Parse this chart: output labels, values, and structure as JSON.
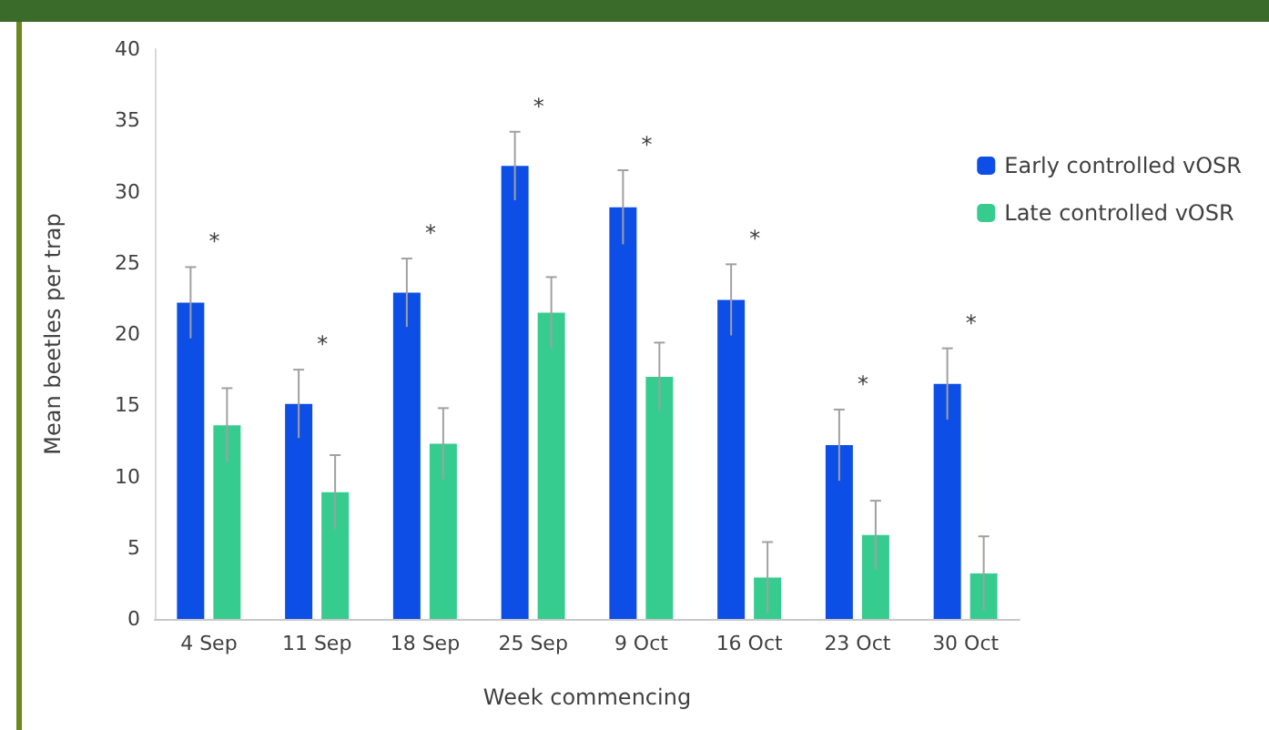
{
  "chart_data": {
    "type": "bar",
    "xlabel": "Week commencing",
    "ylabel": "Mean beetles per trap",
    "categories": [
      "4 Sep",
      "11 Sep",
      "18 Sep",
      "25 Sep",
      "9 Oct",
      "16 Oct",
      "23 Oct",
      "30 Oct"
    ],
    "series": [
      {
        "name": "Early controlled vOSR",
        "color": "#0d4fe6",
        "values": [
          22.2,
          15.1,
          22.9,
          31.8,
          28.9,
          22.4,
          12.2,
          16.5
        ],
        "errors": [
          2.5,
          2.4,
          2.4,
          2.4,
          2.6,
          2.5,
          2.5,
          2.5
        ]
      },
      {
        "name": "Late controlled vOSR",
        "color": "#37cc8f",
        "values": [
          13.6,
          8.9,
          12.3,
          21.5,
          17.0,
          2.9,
          5.9,
          3.2
        ],
        "errors": [
          2.6,
          2.6,
          2.5,
          2.5,
          2.4,
          2.5,
          2.4,
          2.6
        ]
      }
    ],
    "ylim": [
      0,
      40
    ],
    "yticks": [
      0,
      5,
      10,
      15,
      20,
      25,
      30,
      35,
      40
    ],
    "grid": false,
    "legend": "right",
    "annotations": [
      "*",
      "*",
      "*",
      "*",
      "*",
      "*",
      "*",
      "*"
    ]
  }
}
